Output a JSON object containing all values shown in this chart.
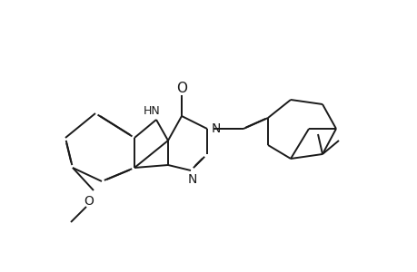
{
  "bg_color": "#ffffff",
  "line_color": "#1a1a1a",
  "line_width": 1.4,
  "dbo": 0.018,
  "figsize": [
    4.6,
    3.0
  ],
  "dpi": 100,
  "xlim": [
    0,
    460
  ],
  "ylim": [
    0,
    300
  ]
}
